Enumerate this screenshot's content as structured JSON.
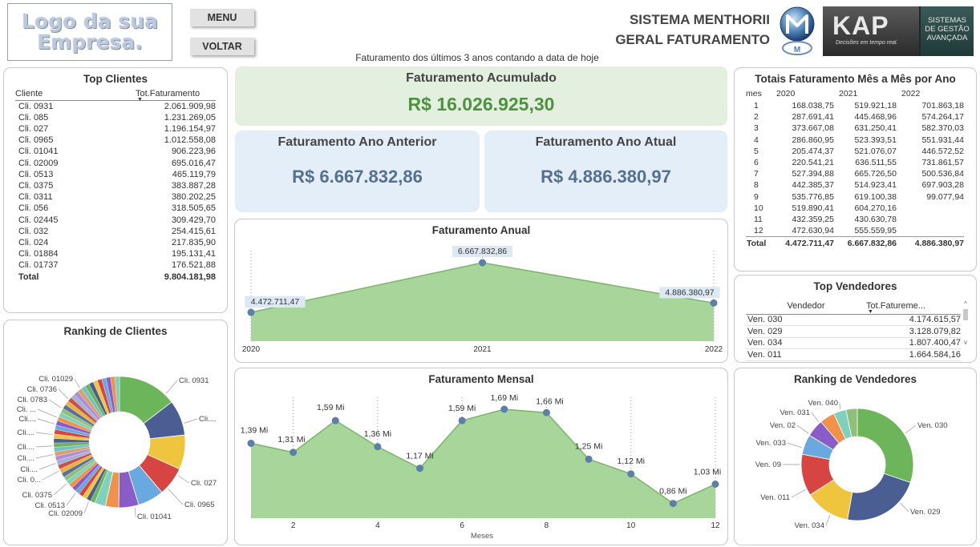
{
  "header": {
    "logo_text": "Logo da sua Empresa.",
    "menu_label": "MENU",
    "voltar_label": "VOLTAR",
    "system_title_1": "SISTEMA MENTHORII",
    "system_title_2": "GERAL FATURAMENTO",
    "kap_logo": "KAP",
    "kap_tagline": "Decisões em tempo real.",
    "kap_side_1": "SISTEMAS",
    "kap_side_2": "DE GESTÃO",
    "kap_side_3": "AVANÇADA",
    "subtitle": "Faturamento dos últimos 3 anos contando a data de hoje"
  },
  "kpis": {
    "acumulado_label": "Faturamento Acumulado",
    "acumulado_value": "R$ 16.026.925,30",
    "anterior_label": "Faturamento Ano Anterior",
    "anterior_value": "R$ 6.667.832,86",
    "atual_label": "Faturamento Ano Atual",
    "atual_value": "R$ 4.886.380,97"
  },
  "top_clientes": {
    "title": "Top Clientes",
    "col_cliente": "Cliente",
    "col_total": "Tot.Faturamento",
    "rows": [
      {
        "cliente": "Cli. 0931",
        "total": "2.061.909,98"
      },
      {
        "cliente": "Cli. 085",
        "total": "1.231.269,05"
      },
      {
        "cliente": "Cli. 027",
        "total": "1.196.154,97"
      },
      {
        "cliente": "Cli. 0965",
        "total": "1.012.558,08"
      },
      {
        "cliente": "Cli. 01041",
        "total": "906.223,96"
      },
      {
        "cliente": "Cli. 02009",
        "total": "695.016,47"
      },
      {
        "cliente": "Cli. 0513",
        "total": "465.119,79"
      },
      {
        "cliente": "Cli. 0375",
        "total": "383.887,28"
      },
      {
        "cliente": "Cli. 0311",
        "total": "380.202,25"
      },
      {
        "cliente": "Cli. 056",
        "total": "318.505,65"
      },
      {
        "cliente": "Cli. 02445",
        "total": "309.429,70"
      },
      {
        "cliente": "Cli. 032",
        "total": "254.415,61"
      },
      {
        "cliente": "Cli. 024",
        "total": "217.835,90"
      },
      {
        "cliente": "Cli. 01884",
        "total": "195.131,41"
      },
      {
        "cliente": "Cli. 01737",
        "total": "176.521,88"
      }
    ],
    "total_label": "Total",
    "total_value": "9.804.181,98"
  },
  "ranking_clientes": {
    "title": "Ranking de Clientes",
    "labels": [
      "Cli. 0931",
      "Cli....",
      "Cli. 027",
      "Cli. 0965",
      "Cli. 01041",
      "Cli. 02009",
      "Cli. 0513",
      "Cli. 0375",
      "Cli. 0...",
      "Cli....",
      "Cli....",
      "Cli....",
      "Cli....",
      "Cli....",
      "Cli. ...",
      "Cli. 0783",
      "Cli. 0736",
      "Cli. 01029"
    ]
  },
  "totais_mes": {
    "title": "Totais Faturamento Mês a Mês por Ano",
    "col_mes": "mes",
    "years": [
      "2020",
      "2021",
      "2022"
    ],
    "rows": [
      {
        "mes": "1",
        "v2020": "168.038,75",
        "v2021": "519.921,18",
        "v2022": "701.863,18"
      },
      {
        "mes": "2",
        "v2020": "287.691,41",
        "v2021": "445.468,96",
        "v2022": "574.264,17"
      },
      {
        "mes": "3",
        "v2020": "373.667,08",
        "v2021": "631.250,41",
        "v2022": "582.370,03"
      },
      {
        "mes": "4",
        "v2020": "286.860,95",
        "v2021": "523.393,51",
        "v2022": "551.931,44"
      },
      {
        "mes": "5",
        "v2020": "205.474,37",
        "v2021": "521.076,07",
        "v2022": "446.572,52"
      },
      {
        "mes": "6",
        "v2020": "220.541,21",
        "v2021": "636.511,55",
        "v2022": "731.861,57"
      },
      {
        "mes": "7",
        "v2020": "527.394,88",
        "v2021": "665.726,50",
        "v2022": "500.536,84"
      },
      {
        "mes": "8",
        "v2020": "442.385,37",
        "v2021": "514.923,41",
        "v2022": "697.903,28"
      },
      {
        "mes": "9",
        "v2020": "535.776,85",
        "v2021": "619.100,38",
        "v2022": "99.077,94"
      },
      {
        "mes": "10",
        "v2020": "519.890,41",
        "v2021": "604.270,16",
        "v2022": ""
      },
      {
        "mes": "11",
        "v2020": "432.359,25",
        "v2021": "430.630,78",
        "v2022": ""
      },
      {
        "mes": "12",
        "v2020": "472.630,94",
        "v2021": "555.559,95",
        "v2022": ""
      }
    ],
    "total_label": "Total",
    "totals": {
      "v2020": "4.472.711,47",
      "v2021": "6.667.832,86",
      "v2022": "4.886.380,97"
    }
  },
  "top_vendedores": {
    "title": "Top Vendedores",
    "col_vendedor": "Vendedor",
    "col_total": "Tot.Fatureme...",
    "rows": [
      {
        "vendedor": "Ven. 030",
        "total": "4.174.615,57"
      },
      {
        "vendedor": "Ven. 029",
        "total": "3.128.079,82"
      },
      {
        "vendedor": "Ven. 034",
        "total": "1.807.400,47"
      },
      {
        "vendedor": "Ven. 011",
        "total": "1.664.584,16"
      }
    ]
  },
  "ranking_vendedores": {
    "title": "Ranking de Vendedores"
  },
  "chart_data": [
    {
      "type": "area",
      "title": "Faturamento Anual",
      "x": [
        "2020",
        "2021",
        "2022"
      ],
      "values": [
        4472711.47,
        6667832.86,
        4886380.97
      ],
      "data_labels": [
        "4.472.711,47",
        "6.667.832,86",
        "4.886.380,97"
      ],
      "color": "#a8d59a"
    },
    {
      "type": "area",
      "title": "Faturamento Mensal",
      "xlabel": "Meses",
      "x": [
        1,
        2,
        3,
        4,
        5,
        6,
        7,
        8,
        9,
        10,
        11,
        12
      ],
      "x_ticks": [
        "2",
        "4",
        "6",
        "8",
        "10",
        "12"
      ],
      "values": [
        1.39,
        1.31,
        1.59,
        1.36,
        1.17,
        1.59,
        1.69,
        1.66,
        1.25,
        1.12,
        0.86,
        1.03
      ],
      "data_labels": [
        "1,39 Mi",
        "1,31 Mi",
        "1,59 Mi",
        "1,36 Mi",
        "1,17 Mi",
        "1,59 Mi",
        "1,69 Mi",
        "1,66 Mi",
        "1,25 Mi",
        "1,12 Mi",
        "0,86 Mi",
        "1,03 Mi"
      ],
      "color": "#a8d59a"
    },
    {
      "type": "pie",
      "title": "Ranking de Clientes",
      "donut": true,
      "labels": [
        "Cli. 0931",
        "Cli. 085",
        "Cli. 027",
        "Cli. 0965",
        "Cli. 01041",
        "Cli. 02009",
        "Cli. 0513",
        "Cli. 0375"
      ],
      "values": [
        2061909.98,
        1231269.05,
        1196154.97,
        1012558.08,
        906223.96,
        695016.47,
        465119.79,
        383887.28
      ],
      "others_count": 40,
      "colors": [
        "#6db55a",
        "#4a5e93",
        "#f0c53e",
        "#d64541",
        "#6aa8e0",
        "#8a5cc8",
        "#f0924a",
        "#7fd1bb"
      ]
    },
    {
      "type": "pie",
      "title": "Ranking de Vendedores",
      "donut": true,
      "labels": [
        "Ven. 030",
        "Ven. 029",
        "Ven. 034",
        "Ven. 011",
        "Ven. 09",
        "Ven. 033",
        "Ven. 02",
        "Ven. 031",
        "Ven. 040"
      ],
      "values": [
        4174615.57,
        3128079.82,
        1807400.47,
        1664584.16,
        800000,
        700000,
        600000,
        500000,
        450000
      ],
      "colors": [
        "#6db55a",
        "#4a5e93",
        "#f0c53e",
        "#d64541",
        "#6aa8e0",
        "#8a5cc8",
        "#f0924a",
        "#7fd1bb",
        "#8fbf7a"
      ]
    }
  ]
}
